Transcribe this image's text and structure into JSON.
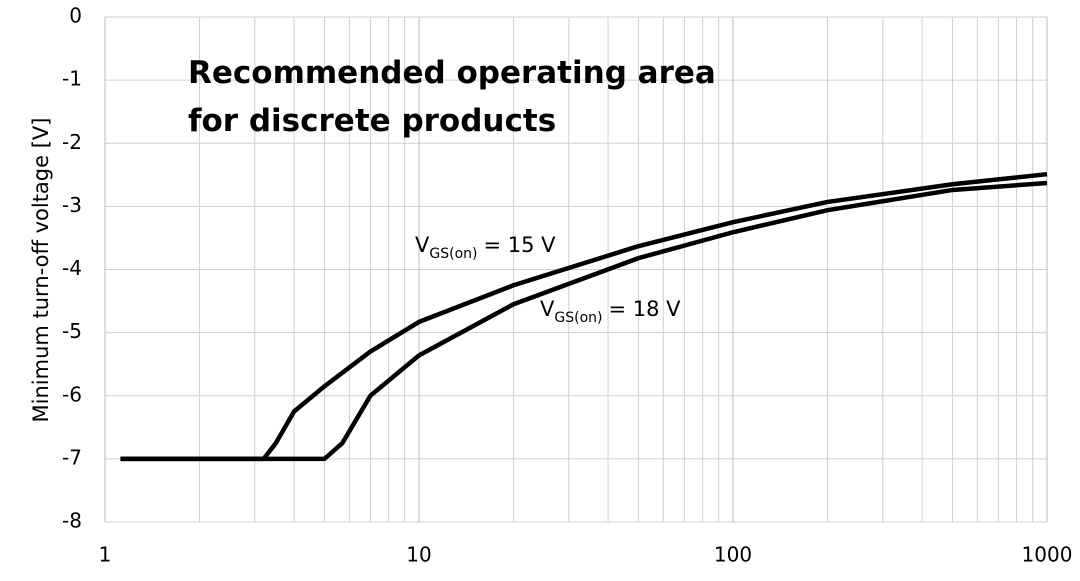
{
  "chart_data": {
    "type": "line",
    "title_lines": [
      "Recommended operating area",
      "for discrete products"
    ],
    "y_label": "Minimum turn-off voltage [V]",
    "x_log": true,
    "xlim": [
      1,
      1000
    ],
    "xticks": [
      1,
      10,
      100,
      1000
    ],
    "x_minor_grid": [
      2,
      3,
      4,
      5,
      6,
      7,
      8,
      9,
      20,
      30,
      40,
      50,
      60,
      70,
      80,
      90,
      200,
      300,
      400,
      500,
      600,
      700,
      800,
      900
    ],
    "ylim": [
      -8,
      0
    ],
    "yticks": [
      -8,
      -7,
      -6,
      -5,
      -4,
      -3,
      -2,
      -1,
      0
    ],
    "grid": true,
    "series": [
      {
        "label": [
          "V",
          "GS(on)",
          "= 15 V"
        ],
        "color": "#000000",
        "x": [
          1.12,
          3.2,
          3.5,
          4,
          5,
          7,
          10,
          20,
          50,
          100,
          200,
          500,
          1000
        ],
        "values": [
          -7,
          -7,
          -6.75,
          -6.25,
          -5.85,
          -5.3,
          -4.83,
          -4.25,
          -3.63,
          -3.25,
          -2.93,
          -2.65,
          -2.49
        ]
      },
      {
        "label": [
          "V",
          "GS(on)",
          "= 18 V"
        ],
        "color": "#000000",
        "x": [
          1.12,
          5.0,
          5.7,
          7,
          10,
          20,
          50,
          100,
          200,
          500,
          1000
        ],
        "values": [
          -7,
          -7,
          -6.75,
          -6.0,
          -5.36,
          -4.55,
          -3.82,
          -3.41,
          -3.06,
          -2.74,
          -2.63
        ]
      }
    ]
  }
}
